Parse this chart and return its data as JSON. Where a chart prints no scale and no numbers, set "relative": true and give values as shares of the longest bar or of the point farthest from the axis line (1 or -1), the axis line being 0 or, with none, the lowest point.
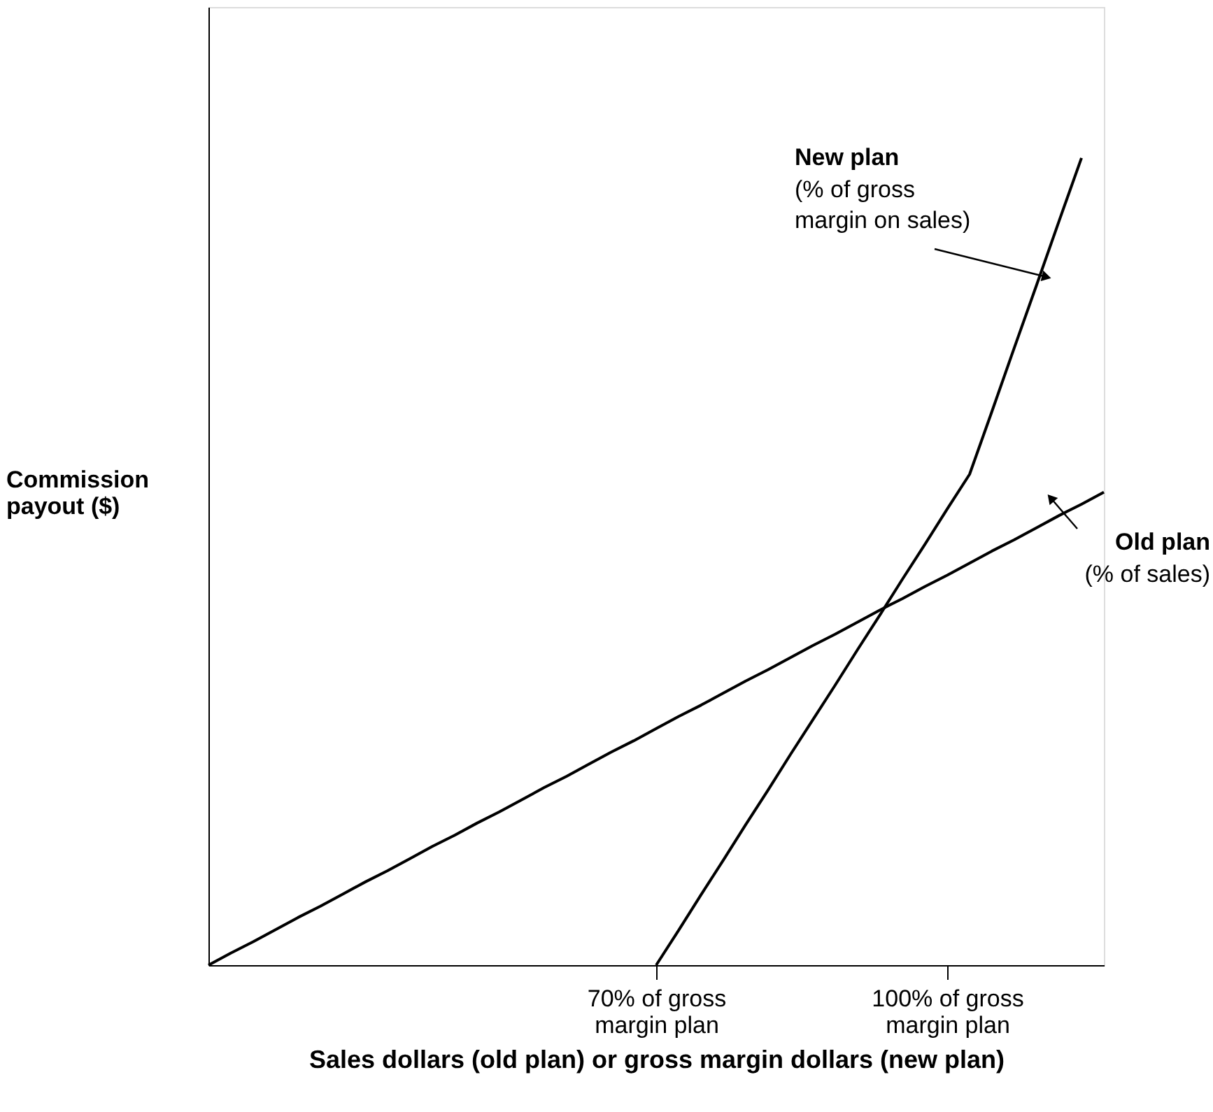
{
  "chart_data": {
    "type": "line",
    "relative": true,
    "xlabel": "Sales dollars (old plan) or gross margin dollars (new plan)",
    "ylabel": "Commission payout ($)",
    "categories": [
      null,
      null,
      null,
      null,
      null,
      null,
      null,
      null,
      null,
      null,
      null,
      null,
      null,
      null,
      null,
      null,
      null,
      null,
      null,
      null,
      "70% of gross margin plan",
      null,
      null,
      null,
      null,
      null,
      null,
      null,
      null,
      null,
      null,
      null,
      null,
      "100% of gross margin plan",
      null,
      null,
      null,
      null,
      null,
      null,
      null
    ],
    "grid": false,
    "marker": "none",
    "line_style": "solid",
    "series": [
      {
        "color": "#000000",
        "values": [
          0,
          0.015,
          0.029,
          0.044,
          0.059,
          0.073,
          0.088,
          0.103,
          0.117,
          0.132,
          0.147,
          0.161,
          0.176,
          0.19,
          0.205,
          0.22,
          0.234,
          0.249,
          0.264,
          0.278,
          0.293,
          0.308,
          0.322,
          0.337,
          0.352,
          0.366,
          0.381,
          0.396,
          0.41,
          0.425,
          0.44,
          0.454,
          0.469,
          0.483,
          0.498,
          0.513,
          0.527,
          0.542,
          0.557,
          0.571,
          0.586
        ]
      },
      {
        "color": "#000000",
        "values": [
          null,
          null,
          null,
          null,
          null,
          null,
          null,
          null,
          null,
          null,
          null,
          null,
          null,
          null,
          null,
          null,
          null,
          null,
          null,
          null,
          0,
          0.043,
          0.087,
          0.13,
          0.174,
          0.217,
          0.261,
          0.304,
          0.347,
          0.391,
          0.434,
          0.478,
          0.521,
          0.565,
          0.608,
          0.686,
          0.765,
          0.843,
          0.922,
          1,
          null
        ]
      }
    ],
    "annotations": [
      "New plan\n(% of gross\nmargin on sales)",
      "Old plan\n(% of sales)"
    ]
  }
}
